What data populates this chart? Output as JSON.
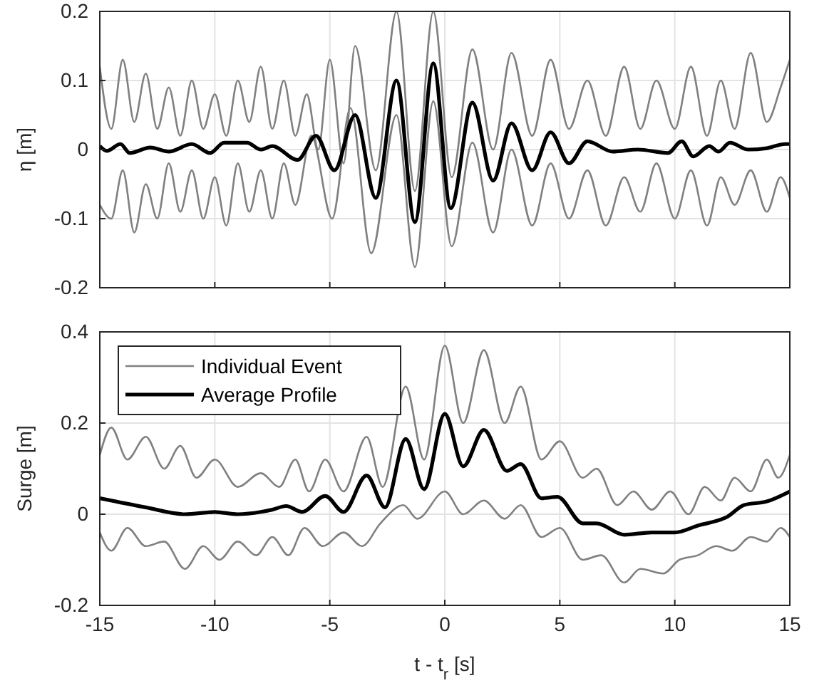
{
  "chart_data": [
    {
      "type": "line",
      "ylabel": "η [m]",
      "xlim": [
        -15,
        15
      ],
      "xticks": [
        -15,
        -10,
        -5,
        0,
        5,
        10,
        15
      ],
      "ylim": [
        -0.2,
        0.2
      ],
      "yticks": [
        -0.2,
        -0.1,
        0,
        0.1,
        0.2
      ],
      "grid": true,
      "legend": false,
      "tick_labels": "y",
      "series": [
        {
          "color": "#808080",
          "x": [
            -15,
            -14.5,
            -14,
            -13.5,
            -13,
            -12.5,
            -12,
            -11.5,
            -11,
            -10.5,
            -10,
            -9.5,
            -9,
            -8.5,
            -8,
            -7.5,
            -7,
            -6.5,
            -6,
            -5.5,
            -5,
            -4.4,
            -3.9,
            -3,
            -2.1,
            -1.3,
            -0.5,
            0.3,
            1.2,
            2.1,
            2.9,
            3.8,
            4.6,
            5.4,
            6.2,
            7,
            7.8,
            8.5,
            9.2,
            10,
            10.7,
            11.4,
            12,
            12.6,
            13.3,
            14,
            14.6,
            15
          ],
          "values": [
            0.12,
            0.03,
            0.13,
            0.04,
            0.11,
            0.03,
            0.09,
            0.02,
            0.1,
            0.03,
            0.08,
            0.02,
            0.1,
            0.04,
            0.12,
            0.03,
            0.1,
            0.02,
            0.08,
            0.0,
            0.13,
            -0.02,
            0.15,
            -0.03,
            0.2,
            -0.06,
            0.2,
            -0.04,
            0.145,
            0.0,
            0.14,
            0.02,
            0.13,
            0.03,
            0.1,
            0.02,
            0.12,
            0.03,
            0.1,
            0.03,
            0.12,
            0.02,
            0.1,
            0.03,
            0.14,
            0.04,
            0.09,
            0.13
          ]
        },
        {
          "color": "#808080",
          "x": [
            -15,
            -14.5,
            -14,
            -13.5,
            -13,
            -12.5,
            -12,
            -11.5,
            -11,
            -10.5,
            -10,
            -9.5,
            -9,
            -8.5,
            -8,
            -7.5,
            -7,
            -6.5,
            -5.8,
            -4.9,
            -4.1,
            -3.2,
            -2.1,
            -1.3,
            -0.5,
            0.3,
            1.2,
            2.1,
            2.9,
            3.8,
            4.6,
            5.4,
            6.2,
            7,
            7.8,
            8.5,
            9.2,
            10,
            10.7,
            11.4,
            12,
            12.6,
            13.3,
            14,
            14.6,
            15
          ],
          "values": [
            -0.08,
            -0.1,
            -0.03,
            -0.12,
            -0.05,
            -0.1,
            -0.02,
            -0.09,
            -0.03,
            -0.1,
            -0.04,
            -0.11,
            -0.02,
            -0.09,
            -0.03,
            -0.1,
            -0.02,
            -0.08,
            0.02,
            -0.1,
            0.06,
            -0.15,
            0.05,
            -0.17,
            0.07,
            -0.14,
            0.01,
            -0.12,
            0.0,
            -0.11,
            -0.02,
            -0.1,
            -0.03,
            -0.11,
            -0.04,
            -0.09,
            -0.02,
            -0.1,
            -0.03,
            -0.11,
            -0.04,
            -0.08,
            -0.03,
            -0.09,
            -0.04,
            -0.07
          ]
        },
        {
          "color": "#000000",
          "x": [
            -15,
            -14.7,
            -14.1,
            -13.7,
            -12.8,
            -12,
            -11,
            -10.2,
            -9.6,
            -8.6,
            -8,
            -7.5,
            -6.4,
            -5.6,
            -4.8,
            -3.9,
            -3,
            -2.1,
            -1.3,
            -0.5,
            0.26,
            1.2,
            2.1,
            2.9,
            3.8,
            4.6,
            5.4,
            6.2,
            7.3,
            8.4,
            9.7,
            10.3,
            10.8,
            11.5,
            11.9,
            12.4,
            13.2,
            14,
            14.8,
            15
          ],
          "values": [
            0.005,
            -0.002,
            0.008,
            -0.005,
            0.003,
            -0.003,
            0.008,
            -0.005,
            0.01,
            0.01,
            0,
            0.005,
            -0.015,
            0.02,
            -0.03,
            0.05,
            -0.07,
            0.1,
            -0.105,
            0.125,
            -0.085,
            0.068,
            -0.045,
            0.038,
            -0.03,
            0.025,
            -0.02,
            0.012,
            -0.003,
            0,
            -0.005,
            0.012,
            -0.01,
            0.005,
            -0.003,
            0.01,
            0,
            0.002,
            0.008,
            0.008
          ]
        }
      ]
    },
    {
      "type": "line",
      "xlabel": "t - t$_{r}$ [s]",
      "ylabel": "Surge [m]",
      "xlim": [
        -15,
        15
      ],
      "xticks": [
        -15,
        -10,
        -5,
        0,
        5,
        10,
        15
      ],
      "ylim": [
        -0.2,
        0.4
      ],
      "yticks": [
        -0.2,
        0,
        0.2,
        0.4
      ],
      "grid": true,
      "legend": "top left",
      "series": [
        {
          "name": "Individual Event",
          "color": "#808080",
          "x": [
            -15,
            -14.5,
            -13.8,
            -13,
            -12.2,
            -11.5,
            -10.8,
            -10,
            -9,
            -8,
            -7.2,
            -6.5,
            -5.9,
            -5.2,
            -4.4,
            -3.4,
            -2.7,
            -1.7,
            -0.9,
            0,
            0.8,
            1.7,
            2.6,
            3.3,
            4.2,
            5,
            6,
            6.6,
            7.5,
            8.2,
            9,
            9.8,
            10.6,
            11.3,
            12,
            12.6,
            13.3,
            14,
            14.5,
            15
          ],
          "values": [
            0.13,
            0.19,
            0.12,
            0.17,
            0.1,
            0.15,
            0.08,
            0.12,
            0.06,
            0.09,
            0.06,
            0.12,
            0.05,
            0.12,
            0.05,
            0.17,
            0.06,
            0.28,
            0.12,
            0.37,
            0.2,
            0.36,
            0.2,
            0.28,
            0.12,
            0.16,
            0.08,
            0.1,
            0.02,
            0.05,
            0.01,
            0.05,
            0.0,
            0.06,
            0.03,
            0.08,
            0.05,
            0.12,
            0.08,
            0.13
          ]
        },
        {
          "color": "#808080",
          "x": [
            -15,
            -14.5,
            -13.8,
            -13,
            -12.2,
            -11.3,
            -10.5,
            -9.8,
            -9,
            -8.2,
            -7.5,
            -6.8,
            -6.1,
            -5.3,
            -4.4,
            -3.6,
            -2.8,
            -1.8,
            -1.2,
            0,
            0.8,
            1.7,
            2.6,
            3.3,
            4.2,
            5,
            6,
            6.8,
            7.8,
            8.5,
            9.5,
            10.2,
            11,
            11.8,
            12.5,
            13.3,
            14,
            14.6,
            15
          ],
          "values": [
            -0.04,
            -0.08,
            -0.03,
            -0.07,
            -0.06,
            -0.12,
            -0.07,
            -0.1,
            -0.06,
            -0.09,
            -0.05,
            -0.09,
            -0.03,
            -0.07,
            -0.04,
            -0.07,
            -0.02,
            0.02,
            -0.01,
            0.05,
            0.0,
            0.03,
            -0.01,
            0.02,
            -0.05,
            -0.03,
            -0.1,
            -0.09,
            -0.15,
            -0.12,
            -0.13,
            -0.1,
            -0.09,
            -0.07,
            -0.08,
            -0.05,
            -0.06,
            -0.03,
            -0.05
          ]
        },
        {
          "name": "Average Profile",
          "color": "#000000",
          "x": [
            -15,
            -13,
            -11.3,
            -10,
            -9,
            -8,
            -7.5,
            -6.9,
            -6.2,
            -5.2,
            -4.4,
            -3.4,
            -2.6,
            -1.7,
            -0.9,
            0,
            0.8,
            1.7,
            2.7,
            3.3,
            4.2,
            4.9,
            6,
            6.6,
            7.8,
            9,
            10,
            11,
            12.3,
            13,
            14,
            15
          ],
          "values": [
            0.035,
            0.015,
            0,
            0.005,
            0,
            0.005,
            0.01,
            0.018,
            0.005,
            0.04,
            0.005,
            0.085,
            0.015,
            0.165,
            0.055,
            0.22,
            0.105,
            0.185,
            0.095,
            0.11,
            0.035,
            0.038,
            -0.02,
            -0.02,
            -0.045,
            -0.04,
            -0.04,
            -0.025,
            -0.005,
            0.02,
            0.028,
            0.05
          ]
        }
      ]
    }
  ]
}
